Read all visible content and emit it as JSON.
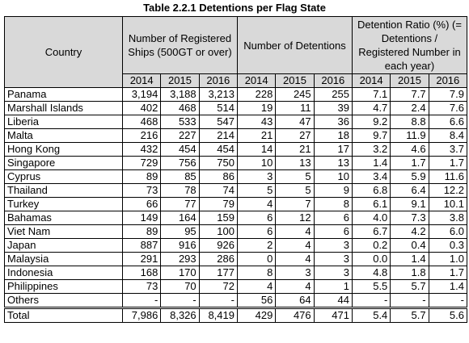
{
  "title": "Table 2.2.1 Detentions per Flag State",
  "header": {
    "country": "Country",
    "groups": [
      "Number of Registered Ships (500GT or over)",
      "Number of Detentions",
      "Detention Ratio (%) (= Detentions / Registered Number in each year)"
    ],
    "years": [
      "2014",
      "2015",
      "2016"
    ]
  },
  "table": {
    "rows": [
      [
        "Panama",
        "3,194",
        "3,188",
        "3,213",
        "228",
        "245",
        "255",
        "7.1",
        "7.7",
        "7.9"
      ],
      [
        "Marshall Islands",
        "402",
        "468",
        "514",
        "19",
        "11",
        "39",
        "4.7",
        "2.4",
        "7.6"
      ],
      [
        "Liberia",
        "468",
        "533",
        "547",
        "43",
        "47",
        "36",
        "9.2",
        "8.8",
        "6.6"
      ],
      [
        "Malta",
        "216",
        "227",
        "214",
        "21",
        "27",
        "18",
        "9.7",
        "11.9",
        "8.4"
      ],
      [
        "Hong Kong",
        "432",
        "454",
        "454",
        "14",
        "21",
        "17",
        "3.2",
        "4.6",
        "3.7"
      ],
      [
        "Singapore",
        "729",
        "756",
        "750",
        "10",
        "13",
        "13",
        "1.4",
        "1.7",
        "1.7"
      ],
      [
        "Cyprus",
        "89",
        "85",
        "86",
        "3",
        "5",
        "10",
        "3.4",
        "5.9",
        "11.6"
      ],
      [
        "Thailand",
        "73",
        "78",
        "74",
        "5",
        "5",
        "9",
        "6.8",
        "6.4",
        "12.2"
      ],
      [
        "Turkey",
        "66",
        "77",
        "79",
        "4",
        "7",
        "8",
        "6.1",
        "9.1",
        "10.1"
      ],
      [
        "Bahamas",
        "149",
        "164",
        "159",
        "6",
        "12",
        "6",
        "4.0",
        "7.3",
        "3.8"
      ],
      [
        "Viet Nam",
        "89",
        "95",
        "100",
        "6",
        "4",
        "6",
        "6.7",
        "4.2",
        "6.0"
      ],
      [
        "Japan",
        "887",
        "916",
        "926",
        "2",
        "4",
        "3",
        "0.2",
        "0.4",
        "0.3"
      ],
      [
        "Malaysia",
        "291",
        "293",
        "286",
        "0",
        "4",
        "3",
        "0.0",
        "1.4",
        "1.0"
      ],
      [
        "Indonesia",
        "168",
        "170",
        "177",
        "8",
        "3",
        "3",
        "4.8",
        "1.8",
        "1.7"
      ],
      [
        "Philippines",
        "73",
        "70",
        "72",
        "4",
        "4",
        "1",
        "5.5",
        "5.7",
        "1.4"
      ],
      [
        "Others",
        "-",
        "-",
        "-",
        "56",
        "64",
        "44",
        "-",
        "-",
        "-"
      ]
    ],
    "total": [
      "Total",
      "7,986",
      "8,326",
      "8,419",
      "429",
      "476",
      "471",
      "5.4",
      "5.7",
      "5.6"
    ]
  }
}
